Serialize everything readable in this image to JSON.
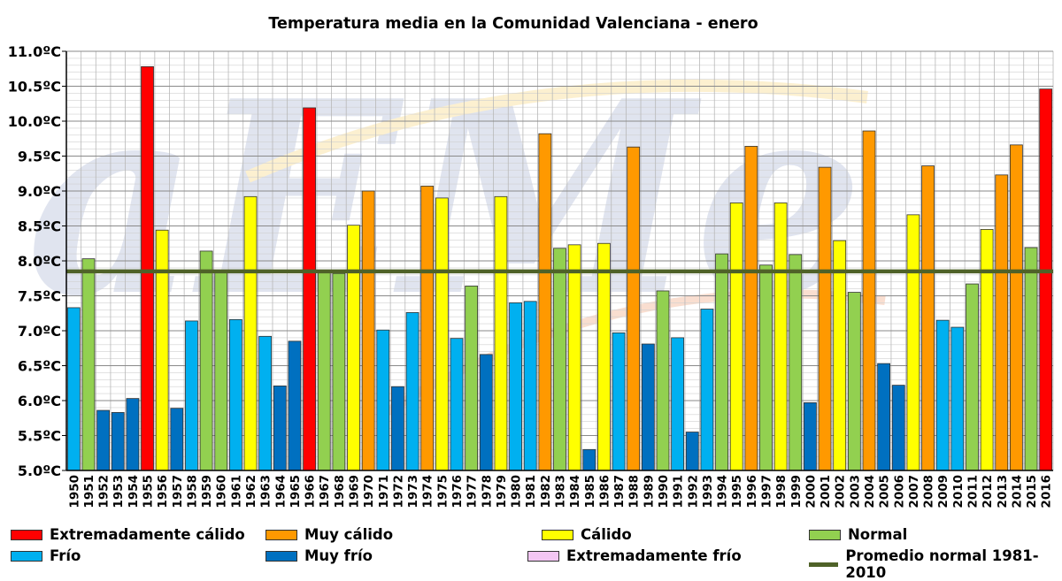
{
  "chart_data": {
    "type": "bar",
    "title": "Temperatura  media  en la Comunidad  Valenciana  - enero",
    "xlabel": "",
    "ylabel": "",
    "ylim": [
      5.0,
      11.0
    ],
    "y_ticks": [
      "5.0ºC",
      "5.5ºC",
      "6.0ºC",
      "6.5ºC",
      "7.0ºC",
      "7.5ºC",
      "8.0ºC",
      "8.5ºC",
      "9.0ºC",
      "9.5ºC",
      "10.0ºC",
      "10.5ºC",
      "11.0ºC"
    ],
    "grid": true,
    "legend_position": "bottom",
    "categories": [
      "1950",
      "1951",
      "1952",
      "1953",
      "1954",
      "1955",
      "1956",
      "1957",
      "1958",
      "1959",
      "1960",
      "1961",
      "1962",
      "1963",
      "1964",
      "1965",
      "1966",
      "1967",
      "1968",
      "1969",
      "1970",
      "1971",
      "1972",
      "1973",
      "1974",
      "1975",
      "1976",
      "1977",
      "1978",
      "1979",
      "1980",
      "1981",
      "1982",
      "1983",
      "1984",
      "1985",
      "1986",
      "1987",
      "1988",
      "1989",
      "1990",
      "1991",
      "1992",
      "1993",
      "1994",
      "1995",
      "1996",
      "1997",
      "1998",
      "1999",
      "2000",
      "2001",
      "2002",
      "2003",
      "2004",
      "2005",
      "2006",
      "2007",
      "2008",
      "2009",
      "2010",
      "2011",
      "2012",
      "2013",
      "2014",
      "2015",
      "2016"
    ],
    "values": [
      7.33,
      8.03,
      5.86,
      5.83,
      6.03,
      10.78,
      8.44,
      5.89,
      7.14,
      8.14,
      7.85,
      7.16,
      8.92,
      6.92,
      6.21,
      6.85,
      10.19,
      7.85,
      7.82,
      8.51,
      9.0,
      7.01,
      6.2,
      7.26,
      9.07,
      8.9,
      6.89,
      7.64,
      6.66,
      8.92,
      7.4,
      7.42,
      9.82,
      8.18,
      8.23,
      5.3,
      8.25,
      6.97,
      9.63,
      6.81,
      7.57,
      6.9,
      5.55,
      7.31,
      8.1,
      8.83,
      9.64,
      7.94,
      8.83,
      8.09,
      5.97,
      9.34,
      8.29,
      7.55,
      9.86,
      6.53,
      6.22,
      8.66,
      9.36,
      7.15,
      7.05,
      7.67,
      8.45,
      9.23,
      9.66,
      8.19,
      10.46
    ],
    "classes": [
      "frio",
      "normal",
      "muy_frio",
      "muy_frio",
      "muy_frio",
      "extremadamente_calido",
      "calido",
      "muy_frio",
      "frio",
      "normal",
      "normal",
      "frio",
      "calido",
      "frio",
      "muy_frio",
      "muy_frio",
      "extremadamente_calido",
      "normal",
      "normal",
      "calido",
      "muy_calido",
      "frio",
      "muy_frio",
      "frio",
      "muy_calido",
      "calido",
      "frio",
      "normal",
      "muy_frio",
      "calido",
      "frio",
      "frio",
      "muy_calido",
      "normal",
      "calido",
      "muy_frio",
      "calido",
      "frio",
      "muy_calido",
      "muy_frio",
      "normal",
      "frio",
      "muy_frio",
      "frio",
      "normal",
      "calido",
      "muy_calido",
      "normal",
      "calido",
      "normal",
      "muy_frio",
      "muy_calido",
      "calido",
      "normal",
      "muy_calido",
      "muy_frio",
      "muy_frio",
      "calido",
      "muy_calido",
      "frio",
      "frio",
      "normal",
      "calido",
      "muy_calido",
      "muy_calido",
      "normal",
      "extremadamente_calido"
    ],
    "reference_line": {
      "name": "Promedio normal 1981-2010",
      "value": 7.85,
      "color": "#4f6228"
    },
    "class_colors": {
      "extremadamente_calido": "#ff0000",
      "muy_calido": "#ff9900",
      "calido": "#ffff00",
      "normal": "#92d050",
      "frio": "#00b0f0",
      "muy_frio": "#0070c0",
      "extremadamente_frio": "#f2c6f2"
    },
    "legend": [
      {
        "key": "extremadamente_calido",
        "label": "Extremadamente cálido"
      },
      {
        "key": "muy_calido",
        "label": "Muy cálido"
      },
      {
        "key": "calido",
        "label": "Cálido"
      },
      {
        "key": "normal",
        "label": "Normal"
      },
      {
        "key": "frio",
        "label": "Frío"
      },
      {
        "key": "muy_frio",
        "label": "Muy frío"
      },
      {
        "key": "extremadamente_frio",
        "label": "Extremadamente frío"
      },
      {
        "key": "promedio",
        "label": "Promedio normal 1981-2010"
      }
    ]
  }
}
